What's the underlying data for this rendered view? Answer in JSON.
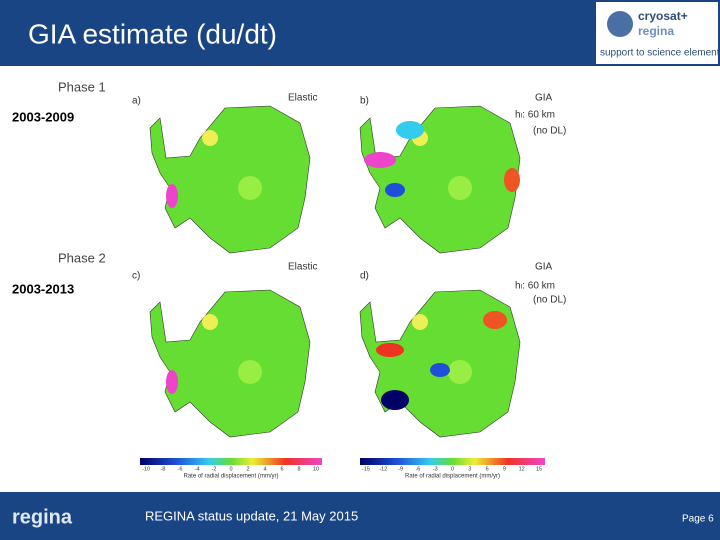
{
  "header": {
    "title": "GIA estimate (du/dt)",
    "logo": {
      "name": "cryosat+",
      "sub": "regina",
      "tagline": "support to science element"
    }
  },
  "figure": {
    "rows": [
      {
        "phase": "Phase 1",
        "period": "2003-2009",
        "panels": [
          {
            "label": "a)",
            "model": "Elastic"
          },
          {
            "label": "b)",
            "model": "GIA",
            "param": "hₗ: 60 km",
            "note": "(no DL)"
          }
        ]
      },
      {
        "phase": "Phase 2",
        "period": "2003-2013",
        "panels": [
          {
            "label": "c)",
            "model": "Elastic"
          },
          {
            "label": "d)",
            "model": "GIA",
            "param": "hₗ: 60 km",
            "note": "(no DL)"
          }
        ]
      }
    ],
    "colorbars": [
      {
        "ticks": [
          "-10",
          "-8",
          "-6",
          "-4",
          "-2",
          "0",
          "2",
          "4",
          "6",
          "8",
          "10"
        ],
        "label": "Rate of radial displacement (mm/yr)"
      },
      {
        "ticks": [
          "-15",
          "-12",
          "-9",
          "-6",
          "-3",
          "0",
          "3",
          "6",
          "9",
          "12",
          "15"
        ],
        "label": "Rate of radial displacement (mm/yr)"
      }
    ]
  },
  "footer": {
    "brand": "regina",
    "text": "REGINA status update, 21 May 2015",
    "page": "Page 6"
  }
}
